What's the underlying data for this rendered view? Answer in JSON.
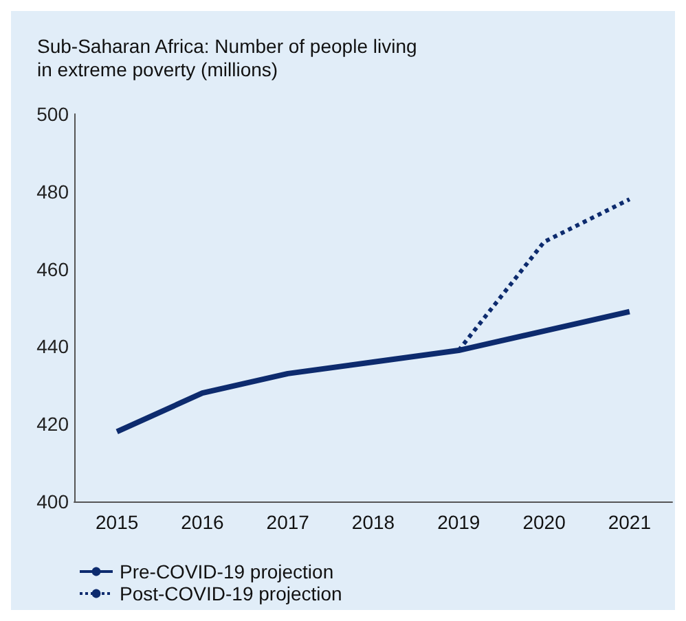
{
  "chart_data": {
    "type": "line",
    "title": "Sub-Saharan Africa: Number of people living\nin extreme poverty (millions)",
    "categories": [
      "2015",
      "2016",
      "2017",
      "2018",
      "2019",
      "2020",
      "2021"
    ],
    "series": [
      {
        "name": "Pre-COVID-19 projection",
        "color": "#0d2b6e",
        "line_style": "solid",
        "values": [
          418,
          428,
          433,
          436,
          439,
          444,
          449
        ]
      },
      {
        "name": "Post-COVID-19 projection",
        "color": "#0d2b6e",
        "line_style": "dotted",
        "values": [
          null,
          null,
          null,
          null,
          439,
          467,
          478
        ]
      }
    ],
    "ylim": [
      400,
      500
    ],
    "yticks": [
      400,
      420,
      440,
      460,
      480,
      500
    ],
    "grid": false,
    "legend": "bottom left",
    "marker": "none"
  }
}
